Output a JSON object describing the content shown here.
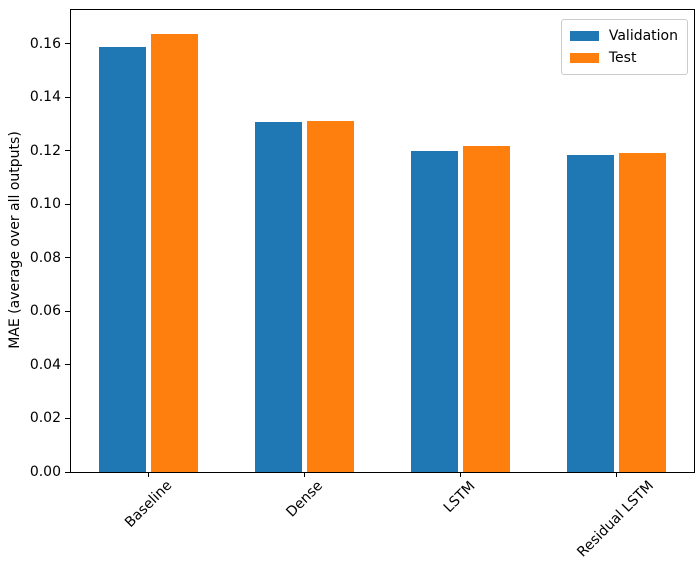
{
  "chart_data": {
    "type": "bar",
    "categories": [
      "Baseline",
      "Dense",
      "LSTM",
      "Residual LSTM"
    ],
    "series": [
      {
        "name": "Validation",
        "color": "#1f77b4",
        "values": [
          0.1589,
          0.1306,
          0.12,
          0.1184
        ]
      },
      {
        "name": "Test",
        "color": "#ff7f0e",
        "values": [
          0.1638,
          0.1311,
          0.1217,
          0.1193
        ]
      }
    ],
    "title": "",
    "xlabel": "",
    "ylabel": "MAE (average over all outputs)",
    "ylim": [
      0,
      0.1726
    ],
    "yticks": [
      0.0,
      0.02,
      0.04,
      0.06,
      0.08,
      0.1,
      0.12,
      0.14,
      0.16
    ],
    "ytick_labels": [
      "0.00",
      "0.02",
      "0.04",
      "0.06",
      "0.08",
      "0.10",
      "0.12",
      "0.14",
      "0.16"
    ],
    "xtick_rotation": 45,
    "grid": false,
    "legend": {
      "position": "upper right",
      "entries": [
        "Validation",
        "Test"
      ]
    }
  },
  "colors": {
    "validation": "#1f77b4",
    "test": "#ff7f0e",
    "spine": "#000000",
    "legend_border": "#cccccc",
    "background": "#ffffff"
  }
}
